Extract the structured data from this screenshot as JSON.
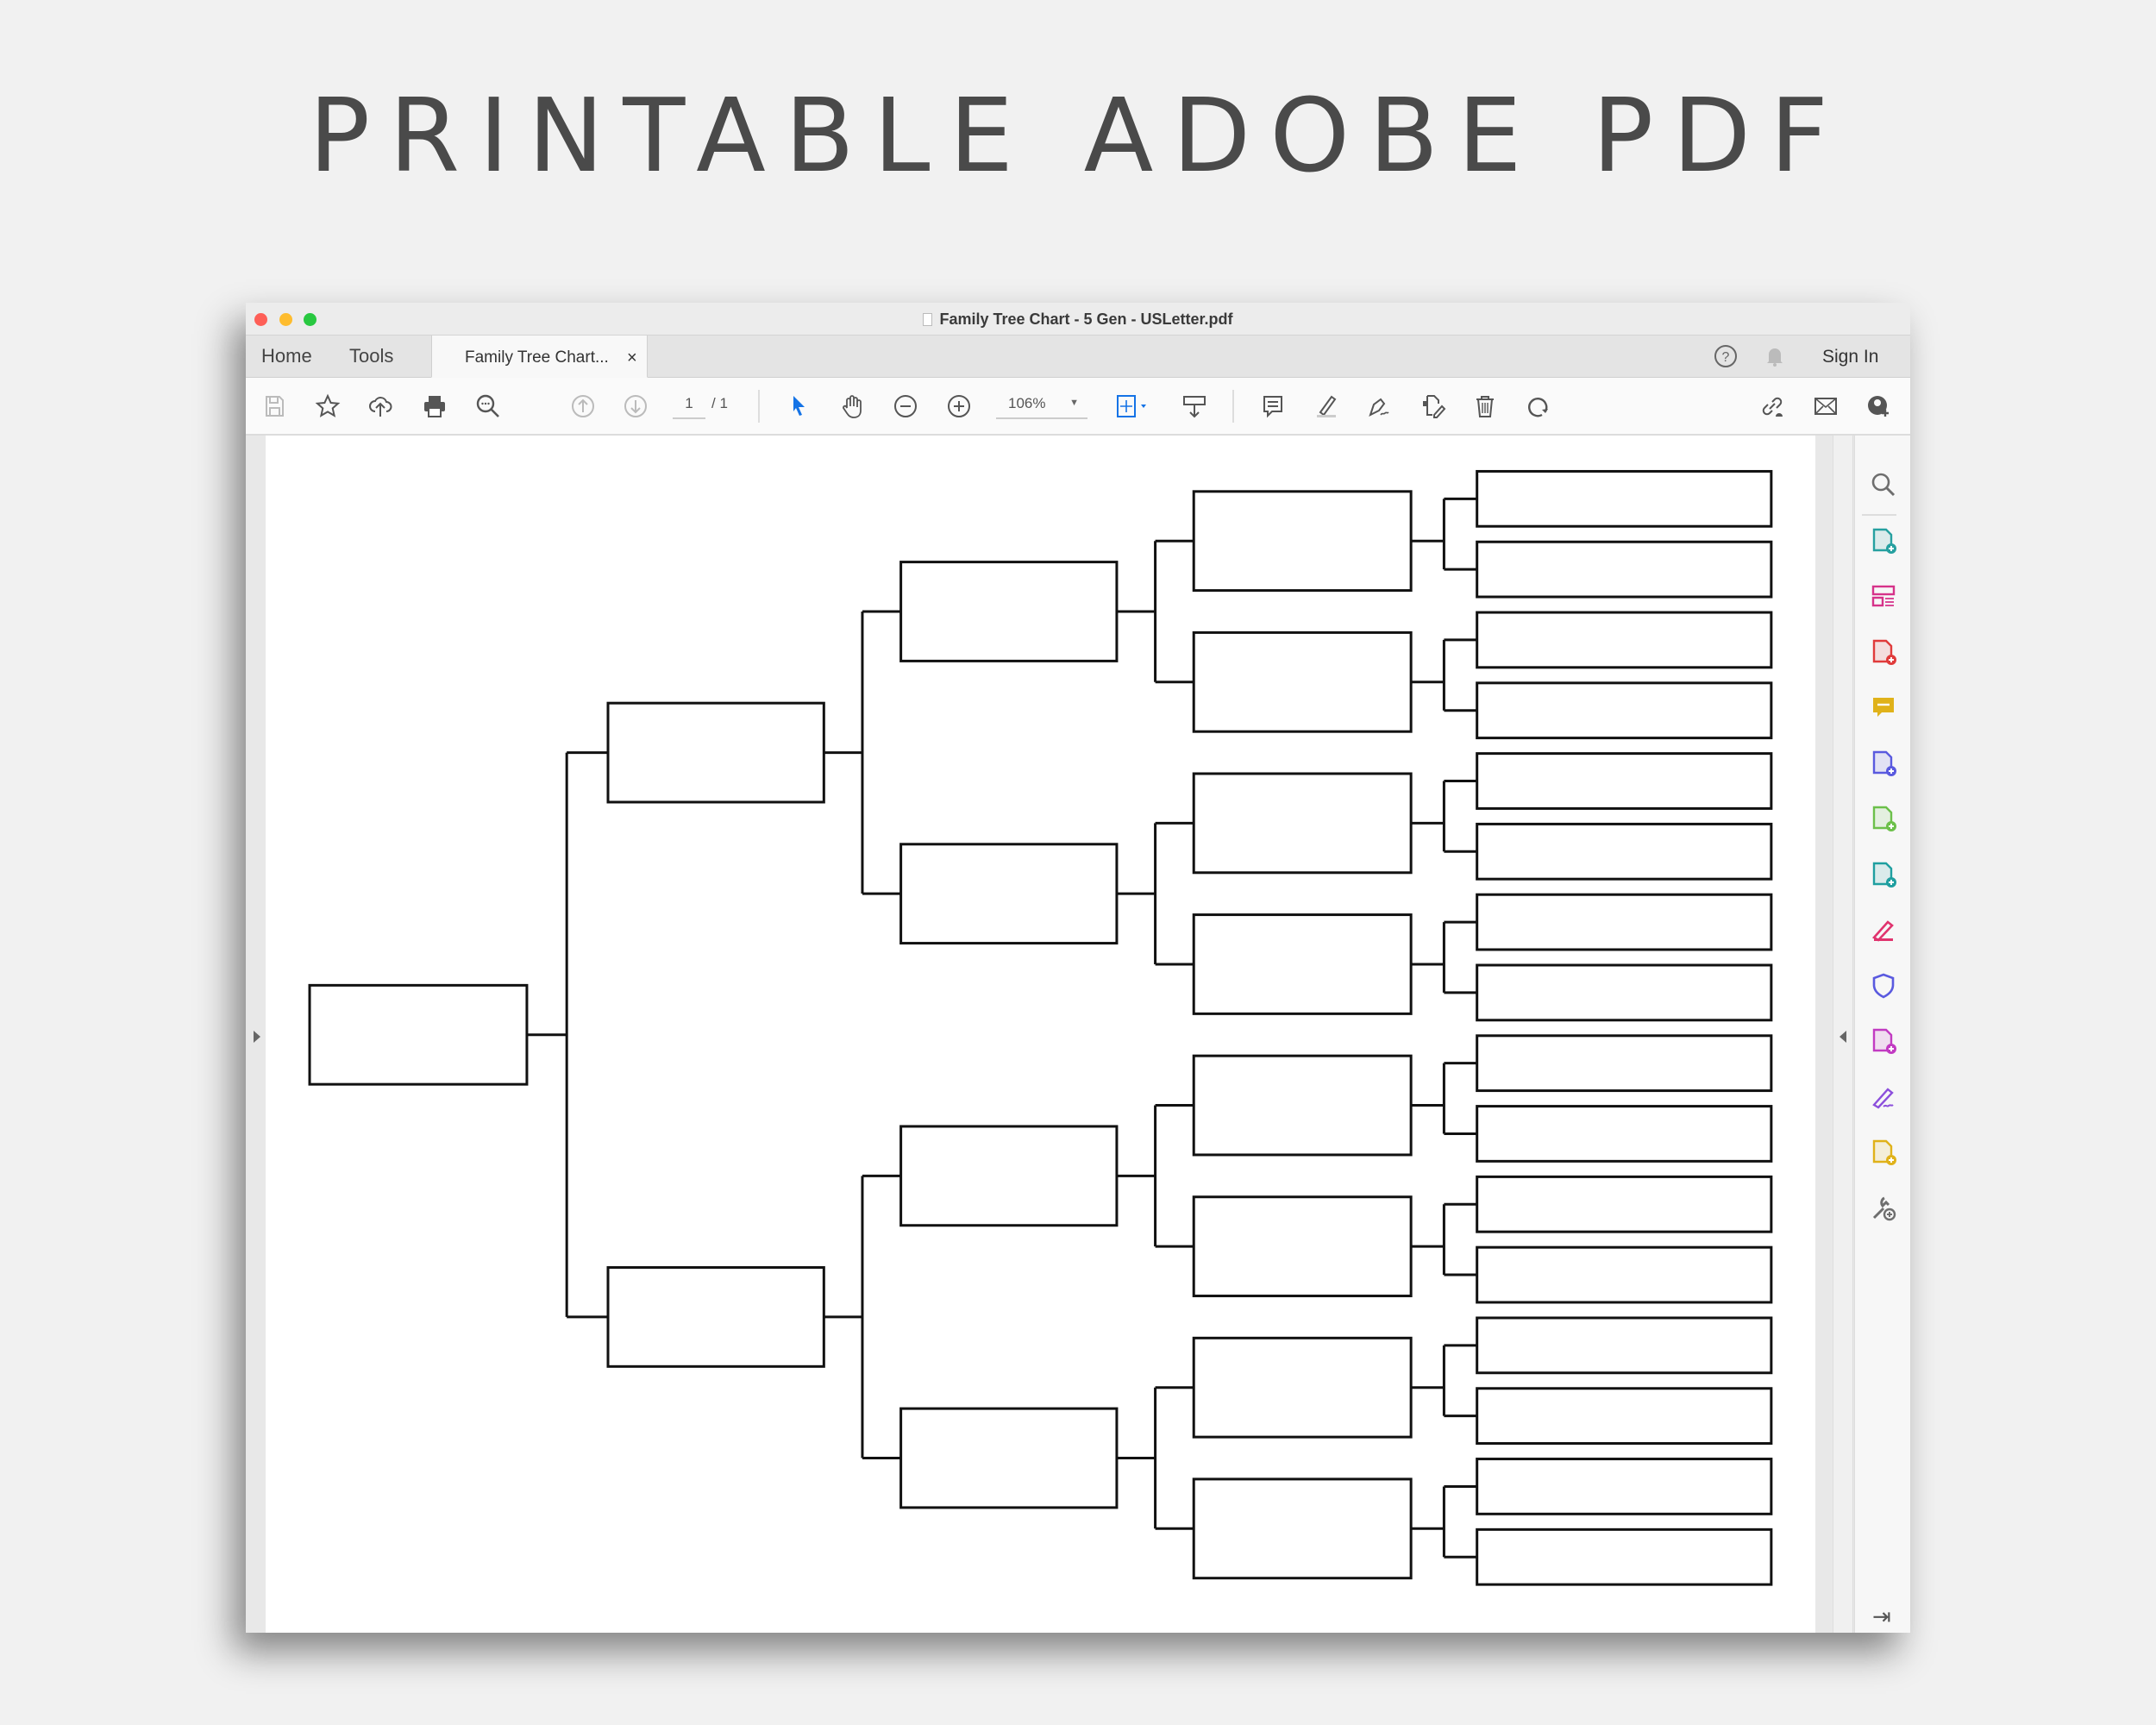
{
  "headline": "PRINTABLE ADOBE PDF",
  "window": {
    "title": "Family Tree Chart - 5 Gen - USLetter.pdf",
    "traffic_lights": {
      "close": "#fe5f57",
      "minimize": "#febc2e",
      "maximize": "#28c840"
    }
  },
  "tabs": {
    "home": "Home",
    "tools": "Tools",
    "document": "Family Tree Chart...",
    "close_glyph": "×",
    "sign_in": "Sign In"
  },
  "toolbar": {
    "page_current": "1",
    "page_total": "/ 1",
    "zoom": "106%",
    "left_icons": [
      "save-icon",
      "bookmark-star-icon",
      "cloud-upload-icon",
      "print-icon",
      "find-icon",
      "page-up-icon",
      "page-down-icon"
    ],
    "mid_icons": [
      "select-cursor-icon",
      "hand-icon",
      "zoom-out-icon",
      "zoom-in-icon"
    ],
    "right_icons": [
      "fit-page-icon",
      "scroll-mode-icon",
      "comment-icon",
      "highlight-icon",
      "fill-sign-icon",
      "edit-pdf-icon",
      "delete-icon",
      "rotate-icon"
    ],
    "share_icons": [
      "share-link-icon",
      "email-icon",
      "add-user-icon"
    ],
    "accent": "#1473e6"
  },
  "right_panel": {
    "tools": [
      {
        "icon": "zoom-panel-icon",
        "color": "#6e6e6e"
      },
      {
        "icon": "export-pdf-icon",
        "color": "#26a0a0"
      },
      {
        "icon": "organize-pages-icon",
        "color": "#d6338a"
      },
      {
        "icon": "create-pdf-icon",
        "color": "#e03b3b"
      },
      {
        "icon": "comment-tool-icon",
        "color": "#e0b21a"
      },
      {
        "icon": "combine-files-icon",
        "color": "#5a5adf"
      },
      {
        "icon": "compress-pdf-icon",
        "color": "#6cc04a"
      },
      {
        "icon": "edit-pdf-tool-icon",
        "color": "#1f9fa0"
      },
      {
        "icon": "fill-sign-tool-icon",
        "color": "#e0336e"
      },
      {
        "icon": "protect-icon",
        "color": "#5a5adf"
      },
      {
        "icon": "prepare-form-icon",
        "color": "#c23bc2"
      },
      {
        "icon": "request-signature-icon",
        "color": "#8c4fdc"
      },
      {
        "icon": "send-comments-icon",
        "color": "#e0b21a"
      },
      {
        "icon": "more-tools-icon",
        "color": "#6e6e6e"
      }
    ]
  },
  "document": {
    "generations": 5
  }
}
